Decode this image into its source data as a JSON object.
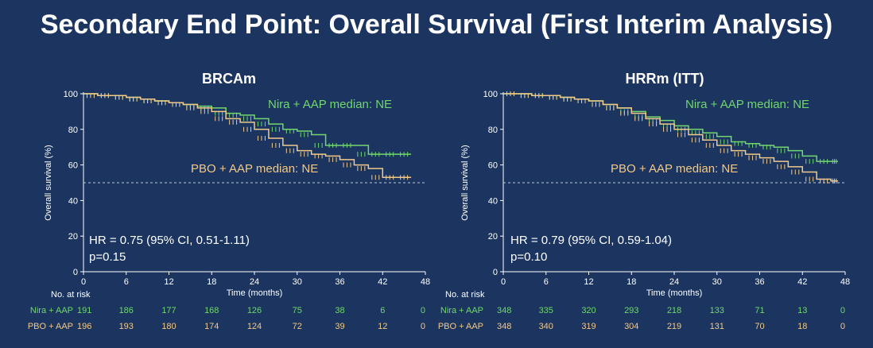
{
  "slide_title": "Secondary End Point: Overall Survival (First Interim Analysis)",
  "colors": {
    "background": "#1b3560",
    "nira": "#72d66e",
    "pbo": "#f0c98a",
    "axis": "#ffffff",
    "reference": "#c8c8c8"
  },
  "chart_data": [
    {
      "type": "line",
      "title": "BRCAm",
      "xlabel": "Time (months)",
      "ylabel": "Overall survival (%)",
      "xlim": [
        0,
        48
      ],
      "ylim": [
        0,
        100
      ],
      "x_ticks": [
        0,
        6,
        12,
        18,
        24,
        30,
        36,
        42,
        48
      ],
      "y_ticks": [
        0,
        20,
        40,
        60,
        80,
        100
      ],
      "reference_line_y": 50,
      "series": [
        {
          "name": "Nira + AAP",
          "key": "nira",
          "x": [
            0,
            2,
            4,
            6,
            8,
            10,
            12,
            14,
            16,
            18,
            20,
            22,
            24,
            26,
            28,
            30,
            32,
            34,
            36,
            38,
            40,
            42,
            44,
            46
          ],
          "y": [
            100,
            99,
            99,
            98,
            97,
            96,
            95,
            94,
            93,
            92,
            89,
            88,
            86,
            83,
            80,
            79,
            77,
            71,
            71,
            71,
            66,
            66,
            66,
            66
          ]
        },
        {
          "name": "PBO + AAP",
          "key": "pbo",
          "x": [
            0,
            2,
            4,
            6,
            8,
            10,
            12,
            14,
            16,
            18,
            20,
            22,
            24,
            26,
            28,
            30,
            32,
            34,
            36,
            38,
            40,
            42,
            44,
            46
          ],
          "y": [
            100,
            99,
            99,
            98,
            97,
            96,
            95,
            94,
            92,
            90,
            86,
            84,
            80,
            75,
            71,
            68,
            66,
            65,
            63,
            60,
            58,
            53,
            53,
            53
          ]
        }
      ],
      "annotations": {
        "nira_median": "Nira + AAP median: NE",
        "pbo_median": "PBO + AAP median: NE"
      },
      "hr_text": "HR = 0.75 (95% CI, 0.51-1.11)",
      "p_text": "p=0.15",
      "risk_table": {
        "header": "No. at risk",
        "rows": [
          {
            "label": "Nira + AAP",
            "key": "nira",
            "values": [
              191,
              186,
              177,
              168,
              126,
              75,
              38,
              6,
              0
            ]
          },
          {
            "label": "PBO + AAP",
            "key": "pbo",
            "values": [
              196,
              193,
              180,
              174,
              124,
              72,
              39,
              12,
              0
            ]
          }
        ]
      }
    },
    {
      "type": "line",
      "title": "HRRm (ITT)",
      "xlabel": "Time (months)",
      "ylabel": "Overall survival (%)",
      "xlim": [
        0,
        48
      ],
      "ylim": [
        0,
        100
      ],
      "x_ticks": [
        0,
        6,
        12,
        18,
        24,
        30,
        36,
        42,
        48
      ],
      "y_ticks": [
        0,
        20,
        40,
        60,
        80,
        100
      ],
      "reference_line_y": 50,
      "series": [
        {
          "name": "Nira + AAP",
          "key": "nira",
          "x": [
            0,
            2,
            4,
            6,
            8,
            10,
            12,
            14,
            16,
            18,
            20,
            22,
            24,
            26,
            28,
            30,
            32,
            34,
            36,
            38,
            40,
            42,
            44,
            46,
            47
          ],
          "y": [
            100,
            100,
            99,
            99,
            98,
            97,
            96,
            94,
            92,
            90,
            87,
            85,
            82,
            80,
            78,
            76,
            73,
            72,
            71,
            70,
            68,
            65,
            62,
            62,
            62
          ]
        },
        {
          "name": "PBO + AAP",
          "key": "pbo",
          "x": [
            0,
            2,
            4,
            6,
            8,
            10,
            12,
            14,
            16,
            18,
            20,
            22,
            24,
            26,
            28,
            30,
            32,
            34,
            36,
            38,
            40,
            42,
            44,
            46,
            47
          ],
          "y": [
            100,
            100,
            99,
            99,
            98,
            97,
            96,
            94,
            92,
            89,
            86,
            83,
            80,
            77,
            74,
            71,
            68,
            66,
            64,
            62,
            59,
            56,
            52,
            51,
            51
          ]
        }
      ],
      "annotations": {
        "nira_median": "Nira + AAP median: NE",
        "pbo_median": "PBO + AAP median: NE"
      },
      "hr_text": "HR = 0.79 (95% CI, 0.59-1.04)",
      "p_text": "p=0.10",
      "risk_table": {
        "header": "No. at risk",
        "rows": [
          {
            "label": "Nira + AAP",
            "key": "nira",
            "values": [
              348,
              335,
              320,
              293,
              218,
              133,
              71,
              13,
              0
            ]
          },
          {
            "label": "PBO + AAP",
            "key": "pbo",
            "values": [
              348,
              340,
              319,
              304,
              219,
              131,
              70,
              18,
              0
            ]
          }
        ]
      }
    }
  ]
}
